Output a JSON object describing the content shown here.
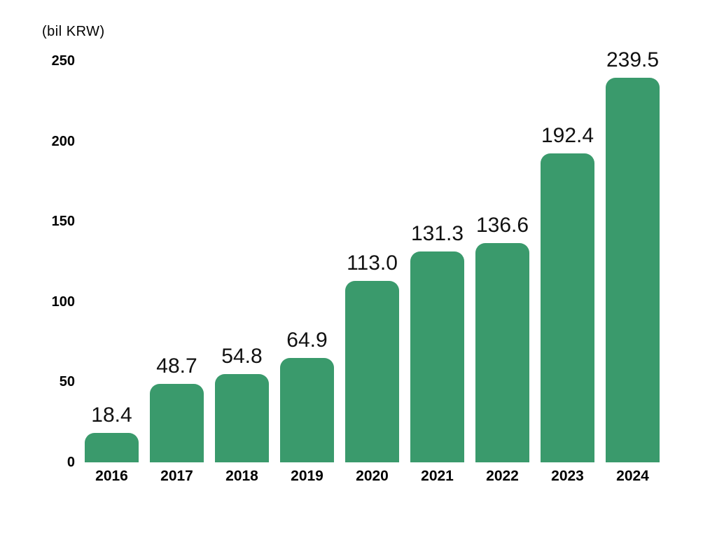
{
  "chart_data": {
    "type": "bar",
    "title": "",
    "xlabel": "",
    "ylabel": "(bil KRW)",
    "unit_label": "(bil KRW)",
    "categories": [
      "2016",
      "2017",
      "2018",
      "2019",
      "2020",
      "2021",
      "2022",
      "2023",
      "2024"
    ],
    "values": [
      18.4,
      48.7,
      54.8,
      64.9,
      113.0,
      131.3,
      136.6,
      192.4,
      239.5
    ],
    "value_labels": [
      "18.4",
      "48.7",
      "54.8",
      "64.9",
      "113.0",
      "131.3",
      "136.6",
      "192.4",
      "239.5"
    ],
    "yticks": [
      0,
      50,
      100,
      150,
      200,
      250
    ],
    "ylim": [
      0,
      250
    ],
    "grid": false,
    "legend_position": "none",
    "bar_color": "#3A9A6C",
    "value_label_color": "#111111",
    "axis_label_color": "#000000",
    "background_color": "#FFFFFF"
  }
}
